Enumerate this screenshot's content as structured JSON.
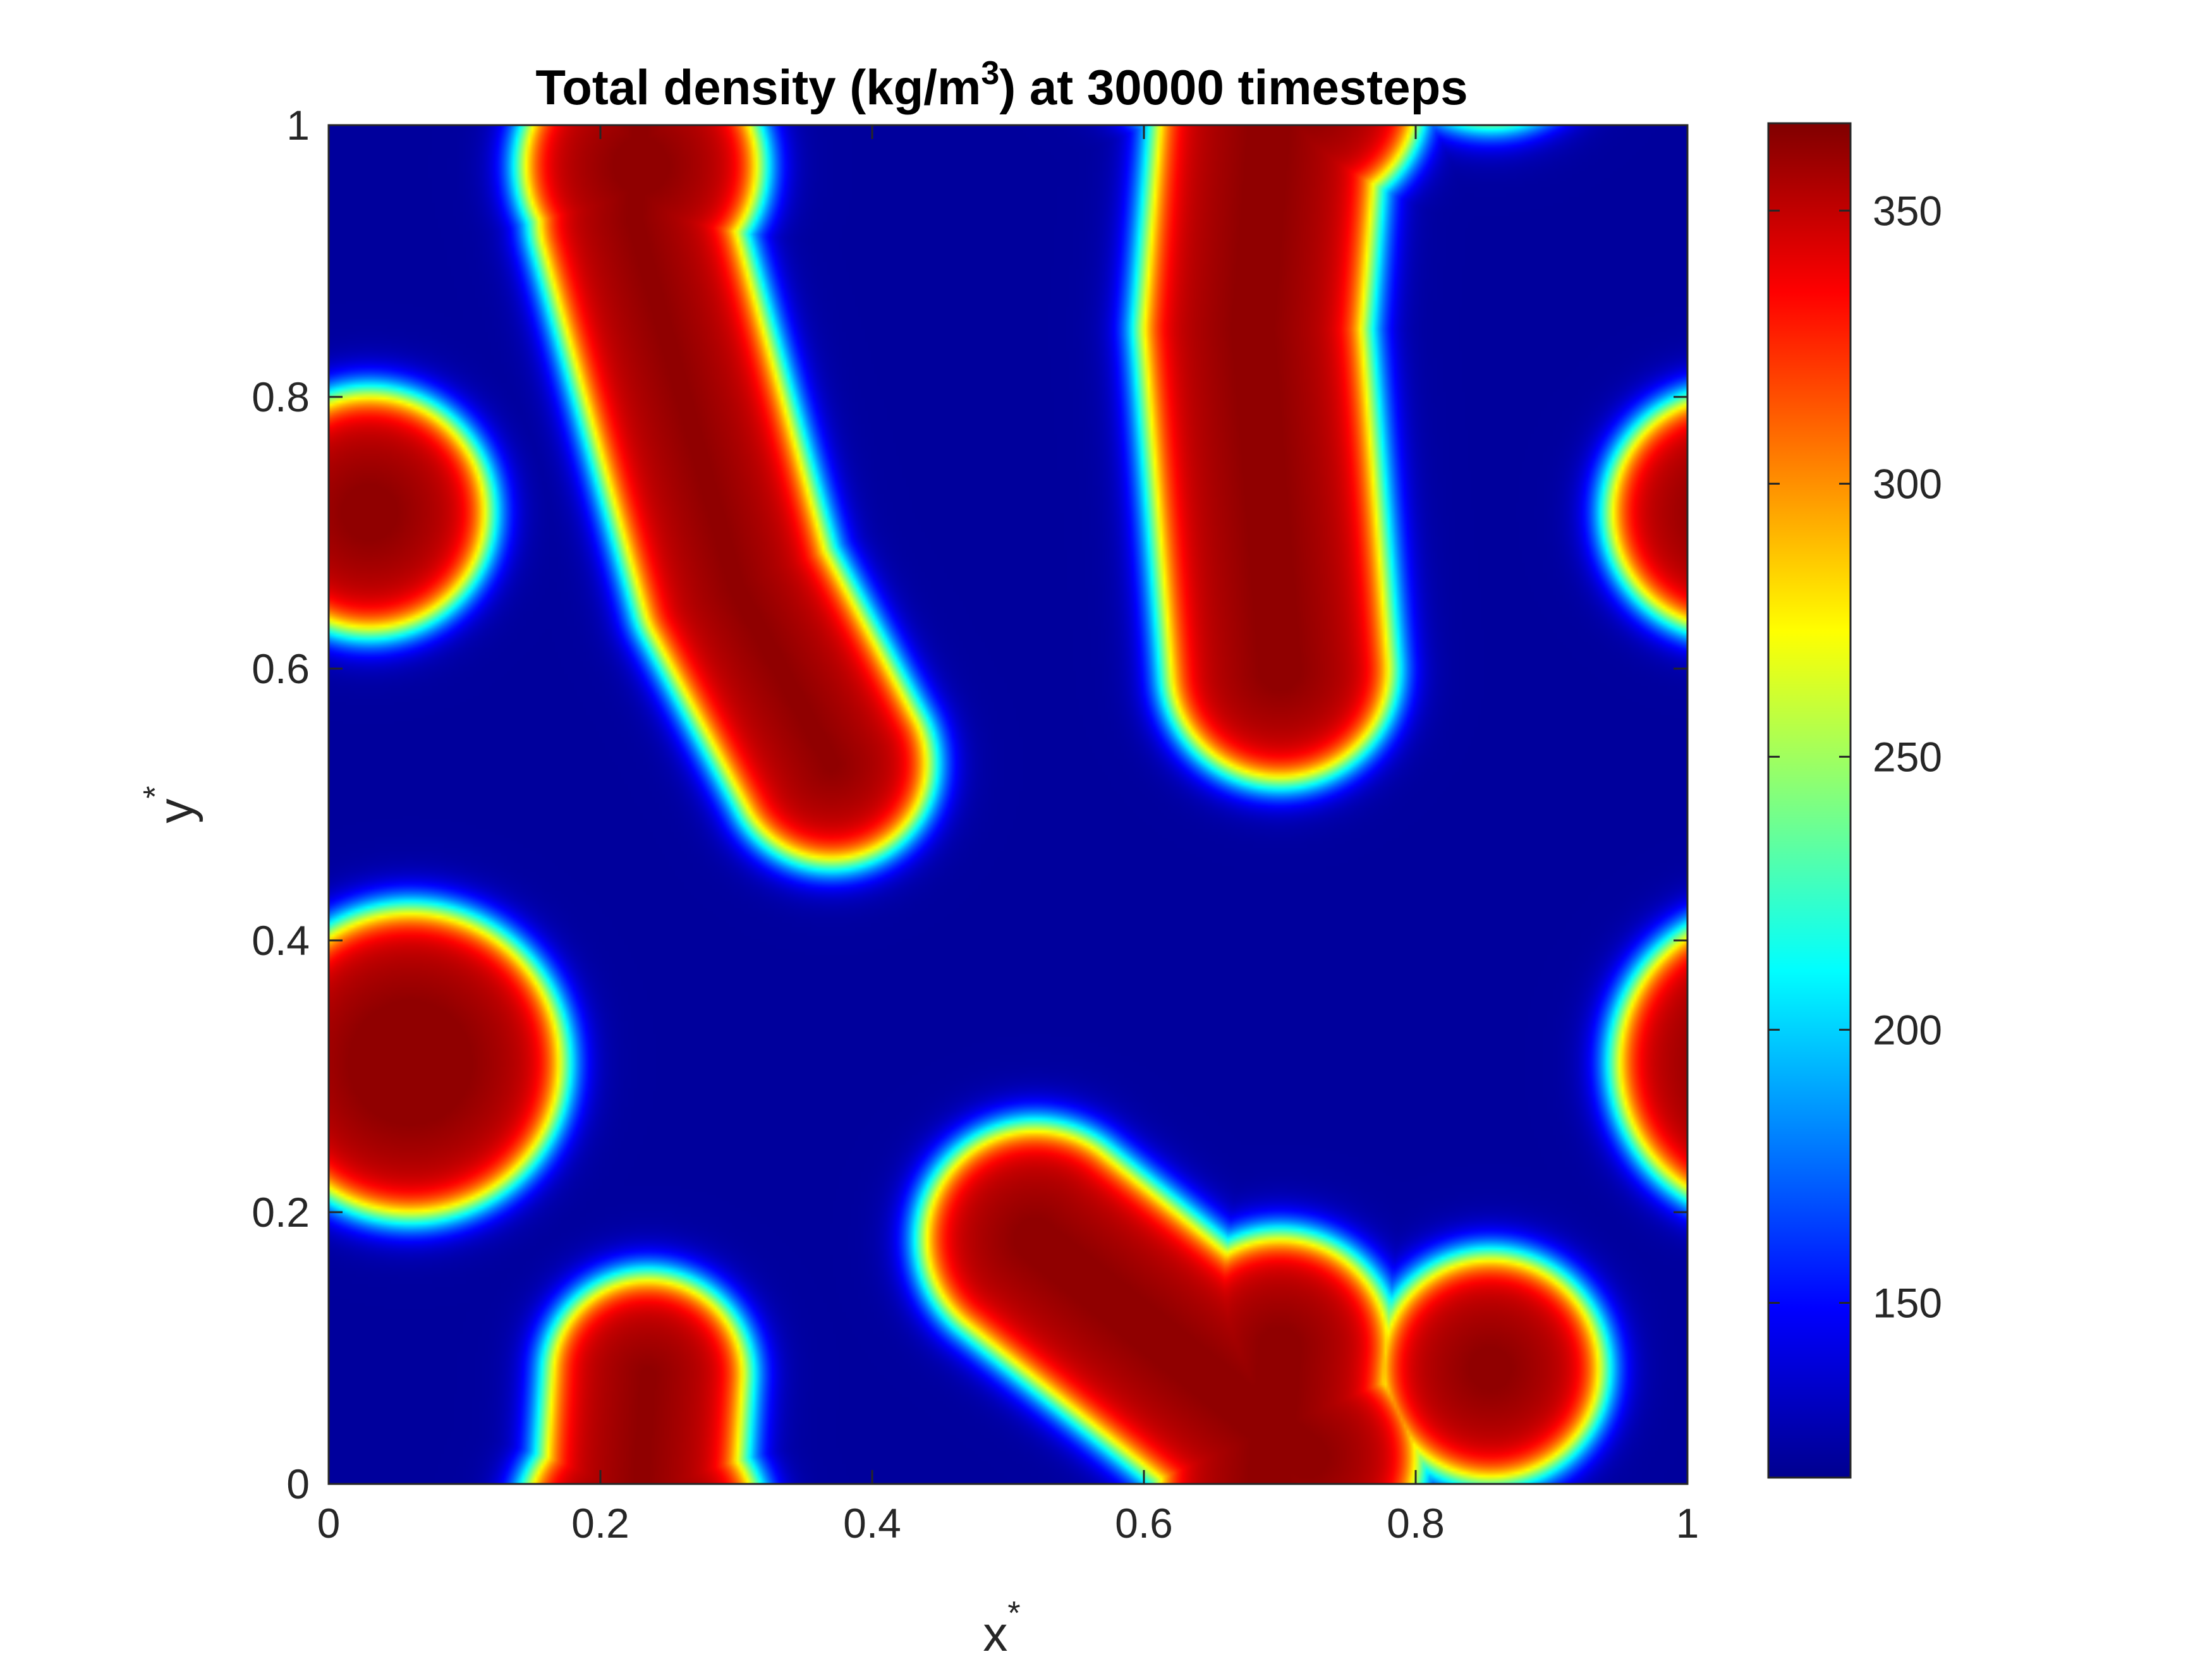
{
  "chart_data": {
    "type": "heatmap",
    "title": {
      "prefix": "Total density (kg/m",
      "superscript": "3",
      "suffix": ") at 30000 timesteps"
    },
    "xlabel": {
      "base": "x",
      "superscript": "*"
    },
    "ylabel": {
      "base": "y",
      "superscript": "*"
    },
    "xlim": [
      0,
      1
    ],
    "ylim": [
      0,
      1
    ],
    "xticks": [
      0,
      0.2,
      0.4,
      0.6,
      0.8,
      1
    ],
    "xtick_labels": [
      "0",
      "0.2",
      "0.4",
      "0.6",
      "0.8",
      "1"
    ],
    "yticks": [
      0,
      0.2,
      0.4,
      0.6,
      0.8,
      1
    ],
    "ytick_labels": [
      "0",
      "0.2",
      "0.4",
      "0.6",
      "0.8",
      "1"
    ],
    "colormap": "jet",
    "colorbar": {
      "range": [
        118,
        366
      ],
      "ticks": [
        150,
        200,
        250,
        300,
        350
      ],
      "tick_labels": [
        "150",
        "200",
        "250",
        "300",
        "350"
      ]
    },
    "background_density": 125,
    "peak_density": 362,
    "high_density_regions": [
      {
        "name": "left-edge-upper-drop",
        "shape": "disc",
        "center": [
          0.03,
          0.715
        ],
        "radius": 0.09,
        "periodic_x": true
      },
      {
        "name": "left-edge-lower-drop",
        "shape": "disc",
        "center": [
          0.06,
          0.31
        ],
        "radius": 0.115,
        "periodic_x": true
      },
      {
        "name": "bottom-drop",
        "shape": "disc",
        "center": [
          0.23,
          -0.03
        ],
        "radius": 0.09,
        "periodic_y": true
      },
      {
        "name": "upper-left-finger",
        "shape": "capsule",
        "path": [
          [
            0.235,
            1.08
          ],
          [
            0.225,
            0.93
          ],
          [
            0.3,
            0.66
          ],
          [
            0.37,
            0.53
          ]
        ],
        "radius": 0.075,
        "periodic_y": true
      },
      {
        "name": "upper-right-finger",
        "shape": "capsule",
        "path": [
          [
            0.7,
            1.1
          ],
          [
            0.68,
            0.85
          ],
          [
            0.7,
            0.6
          ]
        ],
        "radius": 0.085,
        "periodic_y": true
      },
      {
        "name": "lower-ligament",
        "shape": "capsule",
        "path": [
          [
            0.52,
            0.18
          ],
          [
            0.62,
            0.1
          ],
          [
            0.72,
            0.02
          ]
        ],
        "radius": 0.085,
        "periodic_y": true
      },
      {
        "name": "lower-right-drop",
        "shape": "disc",
        "center": [
          0.855,
          0.085
        ],
        "radius": 0.085,
        "periodic_y": true
      }
    ]
  }
}
